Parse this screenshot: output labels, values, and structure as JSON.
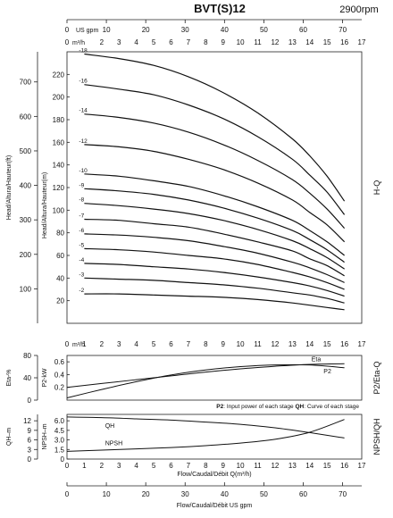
{
  "title": "BVT(S)12",
  "speed": "2900rpm",
  "top_axis": {
    "gpm_label": "US gpm",
    "gpm_ticks": [
      "0",
      "10",
      "20",
      "30",
      "40",
      "50",
      "60",
      "70"
    ],
    "m3h_label": "m³/h",
    "m3h_ticks": [
      "0",
      "2",
      "3",
      "4",
      "5",
      "6",
      "7",
      "8",
      "9",
      "10",
      "11",
      "12",
      "13",
      "14",
      "15",
      "16",
      "17"
    ]
  },
  "bottom_axis": {
    "m3h_label": "m³/h",
    "m3h_ticks": [
      "0",
      "1",
      "2",
      "3",
      "4",
      "5",
      "6",
      "7",
      "8",
      "9",
      "10",
      "11",
      "12",
      "13",
      "14",
      "15",
      "16",
      "17"
    ],
    "gpm_ticks": [
      "0",
      "10",
      "20",
      "30",
      "40",
      "50",
      "60",
      "70"
    ],
    "flow_label": "Flow/Caudal/Débit Q(m³/h)",
    "flow_label_bottom": "Flow/Caudal/Débit  US gpm"
  },
  "panels": {
    "hq": {
      "side_label": "H-Q",
      "left_axis_label": "Head/Altura/Hauteur(ft)",
      "left_ticks": [
        "100",
        "200",
        "300",
        "400",
        "500",
        "600",
        "700"
      ],
      "inner_axis_label": "Head/Altura/Hauteur(m)",
      "inner_ticks": [
        "20",
        "40",
        "60",
        "80",
        "100",
        "120",
        "140",
        "160",
        "180",
        "200",
        "220"
      ]
    },
    "eff": {
      "side_label": "P2/Eta-Q",
      "left_label": "Eta-%",
      "inner_label": "P2-kW",
      "left_ticks": [
        "80",
        "40",
        "0"
      ],
      "inner_ticks": [
        "0.6",
        "0.4",
        "0.2"
      ],
      "note_p2": "P2",
      "note_p2_text": ": Input power of each stage  ",
      "note_qh": "QH",
      "note_qh_text": ": Curve of each stage"
    },
    "npsh": {
      "side_label": "NPSH/QH",
      "left_label": "QH–m",
      "inner_label": "NPSH–m",
      "left_ticks": [
        "12",
        "9",
        "6",
        "3",
        "0"
      ],
      "inner_ticks": [
        "6.0",
        "4.5",
        "3.0",
        "1.5",
        "0"
      ]
    }
  },
  "chart_data": [
    {
      "type": "line",
      "title": "H-Q",
      "xlabel": "Flow/Caudal/Débit Q(m³/h)",
      "ylabel": "Head/Altura/Hauteur(m)",
      "xlim": [
        0,
        17
      ],
      "ylim": [
        0,
        240
      ],
      "x": [
        1,
        3,
        5,
        7,
        9,
        11,
        13,
        14,
        15,
        16
      ],
      "series": [
        {
          "name": "-18",
          "values": [
            238,
            234,
            228,
            218,
            204,
            186,
            163,
            148,
            130,
            108
          ]
        },
        {
          "name": "-16",
          "values": [
            211,
            207,
            202,
            193,
            181,
            165,
            145,
            131,
            116,
            96
          ]
        },
        {
          "name": "-14",
          "values": [
            185,
            182,
            177,
            169,
            158,
            144,
            127,
            115,
            101,
            84
          ]
        },
        {
          "name": "-12",
          "values": [
            158,
            156,
            152,
            145,
            136,
            124,
            109,
            98,
            87,
            72
          ]
        },
        {
          "name": "-10",
          "values": [
            132,
            130,
            126,
            121,
            113,
            103,
            91,
            82,
            72,
            60
          ]
        },
        {
          "name": "-9",
          "values": [
            119,
            117,
            114,
            109,
            102,
            93,
            82,
            74,
            65,
            54
          ]
        },
        {
          "name": "-8",
          "values": [
            106,
            104,
            101,
            97,
            91,
            83,
            73,
            66,
            58,
            48
          ]
        },
        {
          "name": "-7",
          "values": [
            92,
            91,
            88,
            85,
            79,
            72,
            64,
            57,
            51,
            42
          ]
        },
        {
          "name": "-6",
          "values": [
            79,
            78,
            76,
            73,
            68,
            62,
            54,
            49,
            43,
            36
          ]
        },
        {
          "name": "-5",
          "values": [
            66,
            65,
            63,
            60,
            57,
            52,
            45,
            41,
            36,
            30
          ]
        },
        {
          "name": "-4",
          "values": [
            53,
            52,
            50,
            48,
            45,
            41,
            36,
            33,
            29,
            24
          ]
        },
        {
          "name": "-3",
          "values": [
            40,
            39,
            38,
            36,
            34,
            31,
            27,
            25,
            22,
            18
          ]
        },
        {
          "name": "-2",
          "values": [
            26,
            26,
            25,
            24,
            23,
            21,
            18,
            16,
            14,
            12
          ]
        }
      ]
    },
    {
      "type": "line",
      "title": "P2/Eta-Q",
      "xlabel": "Flow/Caudal/Débit Q(m³/h)",
      "ylabel": "Eta-% / P2-kW",
      "xlim": [
        0,
        17
      ],
      "x": [
        0,
        2,
        4,
        6,
        8,
        10,
        12,
        14,
        16
      ],
      "series": [
        {
          "name": "Eta",
          "unit": "%",
          "ylim": [
            0,
            80
          ],
          "values": [
            4,
            19,
            33,
            45,
            54,
            60,
            63,
            63,
            58
          ]
        },
        {
          "name": "P2",
          "unit": "kW",
          "ylim": [
            0,
            0.7
          ],
          "values": [
            0.2,
            0.26,
            0.32,
            0.38,
            0.44,
            0.49,
            0.53,
            0.56,
            0.57
          ]
        }
      ]
    },
    {
      "type": "line",
      "title": "NPSH/QH",
      "xlabel": "Flow/Caudal/Débit Q(m³/h)",
      "ylabel": "QH-m / NPSH-m",
      "xlim": [
        0,
        17
      ],
      "x": [
        0,
        2,
        4,
        6,
        8,
        10,
        12,
        14,
        16
      ],
      "series": [
        {
          "name": "QH",
          "unit": "m",
          "ylim": [
            0,
            14
          ],
          "values": [
            13.2,
            13.0,
            12.6,
            12.2,
            11.6,
            10.9,
            9.8,
            8.3,
            6.6
          ]
        },
        {
          "name": "NPSH",
          "unit": "m",
          "ylim": [
            0,
            7
          ],
          "values": [
            1.2,
            1.4,
            1.6,
            1.8,
            2.1,
            2.5,
            3.1,
            4.2,
            6.2
          ]
        }
      ]
    }
  ]
}
